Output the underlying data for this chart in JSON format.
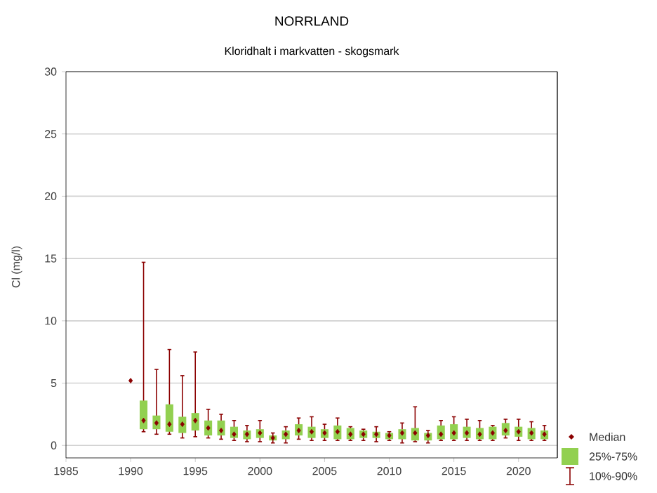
{
  "chart_data": {
    "type": "box",
    "title": "NORRLAND",
    "subtitle": "Kloridhalt i markvatten - skogsmark",
    "ylabel": "Cl (mg/l)",
    "categories": [
      "1985",
      null,
      null,
      null,
      null,
      "1990",
      null,
      null,
      null,
      null,
      "1995",
      null,
      null,
      null,
      null,
      "2000",
      null,
      null,
      null,
      null,
      "2005",
      null,
      null,
      null,
      null,
      "2010",
      null,
      null,
      null,
      null,
      "2015",
      null,
      null,
      null,
      null,
      "2020",
      null,
      null
    ],
    "ylim": [
      -1,
      30
    ],
    "yticks": [
      0,
      5,
      10,
      15,
      20,
      25,
      30
    ],
    "grid": "y",
    "legend": "bottom right",
    "marker": "diamond",
    "color": "#8b0000",
    "annotations": [
      "Median",
      "10%-90%"
    ],
    "series": [
      {
        "name": "25%-75%",
        "color": "#92d050",
        "boxes": [
          null,
          null,
          null,
          null,
          null,
          null,
          {
            "low": 1.1,
            "q1": 1.3,
            "median": 2.0,
            "q3": 3.6,
            "high": 14.7
          },
          {
            "low": 0.9,
            "q1": 1.3,
            "median": 1.8,
            "q3": 2.4,
            "high": 6.1
          },
          {
            "low": 0.9,
            "q1": 1.1,
            "median": 1.7,
            "q3": 3.3,
            "high": 7.7
          },
          {
            "low": 0.6,
            "q1": 1.0,
            "median": 1.7,
            "q3": 2.3,
            "high": 5.6
          },
          {
            "low": 0.7,
            "q1": 1.2,
            "median": 2.0,
            "q3": 2.6,
            "high": 7.5
          },
          {
            "low": 0.6,
            "q1": 0.8,
            "median": 1.4,
            "q3": 2.0,
            "high": 2.9
          },
          {
            "low": 0.5,
            "q1": 0.8,
            "median": 1.2,
            "q3": 2.0,
            "high": 2.5
          },
          {
            "low": 0.4,
            "q1": 0.6,
            "median": 0.9,
            "q3": 1.5,
            "high": 2.0
          },
          {
            "low": 0.3,
            "q1": 0.5,
            "median": 0.9,
            "q3": 1.2,
            "high": 1.6
          },
          {
            "low": 0.3,
            "q1": 0.6,
            "median": 1.0,
            "q3": 1.3,
            "high": 2.0
          },
          {
            "low": 0.2,
            "q1": 0.4,
            "median": 0.6,
            "q3": 0.8,
            "high": 1.0
          },
          {
            "low": 0.2,
            "q1": 0.5,
            "median": 0.9,
            "q3": 1.2,
            "high": 1.5
          },
          {
            "low": 0.5,
            "q1": 0.8,
            "median": 1.2,
            "q3": 1.7,
            "high": 2.2
          },
          {
            "low": 0.4,
            "q1": 0.6,
            "median": 1.1,
            "q3": 1.5,
            "high": 2.3
          },
          {
            "low": 0.4,
            "q1": 0.6,
            "median": 1.0,
            "q3": 1.3,
            "high": 1.7
          },
          {
            "low": 0.4,
            "q1": 0.5,
            "median": 1.1,
            "q3": 1.6,
            "high": 2.2
          },
          {
            "low": 0.4,
            "q1": 0.5,
            "median": 0.9,
            "q3": 1.4,
            "high": 1.5
          },
          {
            "low": 0.4,
            "q1": 0.6,
            "median": 0.9,
            "q3": 1.2,
            "high": 1.3
          },
          {
            "low": 0.3,
            "q1": 0.6,
            "median": 0.9,
            "q3": 1.1,
            "high": 1.5
          },
          {
            "low": 0.4,
            "q1": 0.5,
            "median": 0.8,
            "q3": 1.0,
            "high": 1.1
          },
          {
            "low": 0.2,
            "q1": 0.5,
            "median": 1.0,
            "q3": 1.3,
            "high": 1.8
          },
          {
            "low": 0.3,
            "q1": 0.4,
            "median": 1.0,
            "q3": 1.4,
            "high": 3.1
          },
          {
            "low": 0.2,
            "q1": 0.4,
            "median": 0.8,
            "q3": 1.0,
            "high": 1.2
          },
          {
            "low": 0.4,
            "q1": 0.5,
            "median": 0.9,
            "q3": 1.6,
            "high": 2.0
          },
          {
            "low": 0.4,
            "q1": 0.5,
            "median": 1.0,
            "q3": 1.7,
            "high": 2.3
          },
          {
            "low": 0.4,
            "q1": 0.6,
            "median": 1.0,
            "q3": 1.5,
            "high": 2.1
          },
          {
            "low": 0.4,
            "q1": 0.5,
            "median": 0.9,
            "q3": 1.4,
            "high": 2.0
          },
          {
            "low": 0.4,
            "q1": 0.5,
            "median": 1.0,
            "q3": 1.5,
            "high": 1.6
          },
          {
            "low": 0.6,
            "q1": 0.8,
            "median": 1.2,
            "q3": 1.8,
            "high": 2.1
          },
          {
            "low": 0.4,
            "q1": 0.7,
            "median": 1.1,
            "q3": 1.5,
            "high": 2.1
          },
          {
            "low": 0.4,
            "q1": 0.5,
            "median": 1.0,
            "q3": 1.4,
            "high": 1.9
          },
          {
            "low": 0.4,
            "q1": 0.5,
            "median": 0.9,
            "q3": 1.2,
            "high": 1.6
          }
        ]
      },
      {
        "type": "scatter",
        "color": "#8b0000",
        "values": [
          null,
          null,
          null,
          null,
          null,
          5.2,
          null,
          null,
          null,
          null,
          null,
          null,
          null,
          null,
          null,
          null,
          null,
          null,
          null,
          null,
          null,
          null,
          null,
          null,
          null,
          null,
          null,
          null,
          null,
          null,
          null,
          null,
          null,
          null,
          null,
          null,
          null,
          null
        ]
      }
    ]
  }
}
